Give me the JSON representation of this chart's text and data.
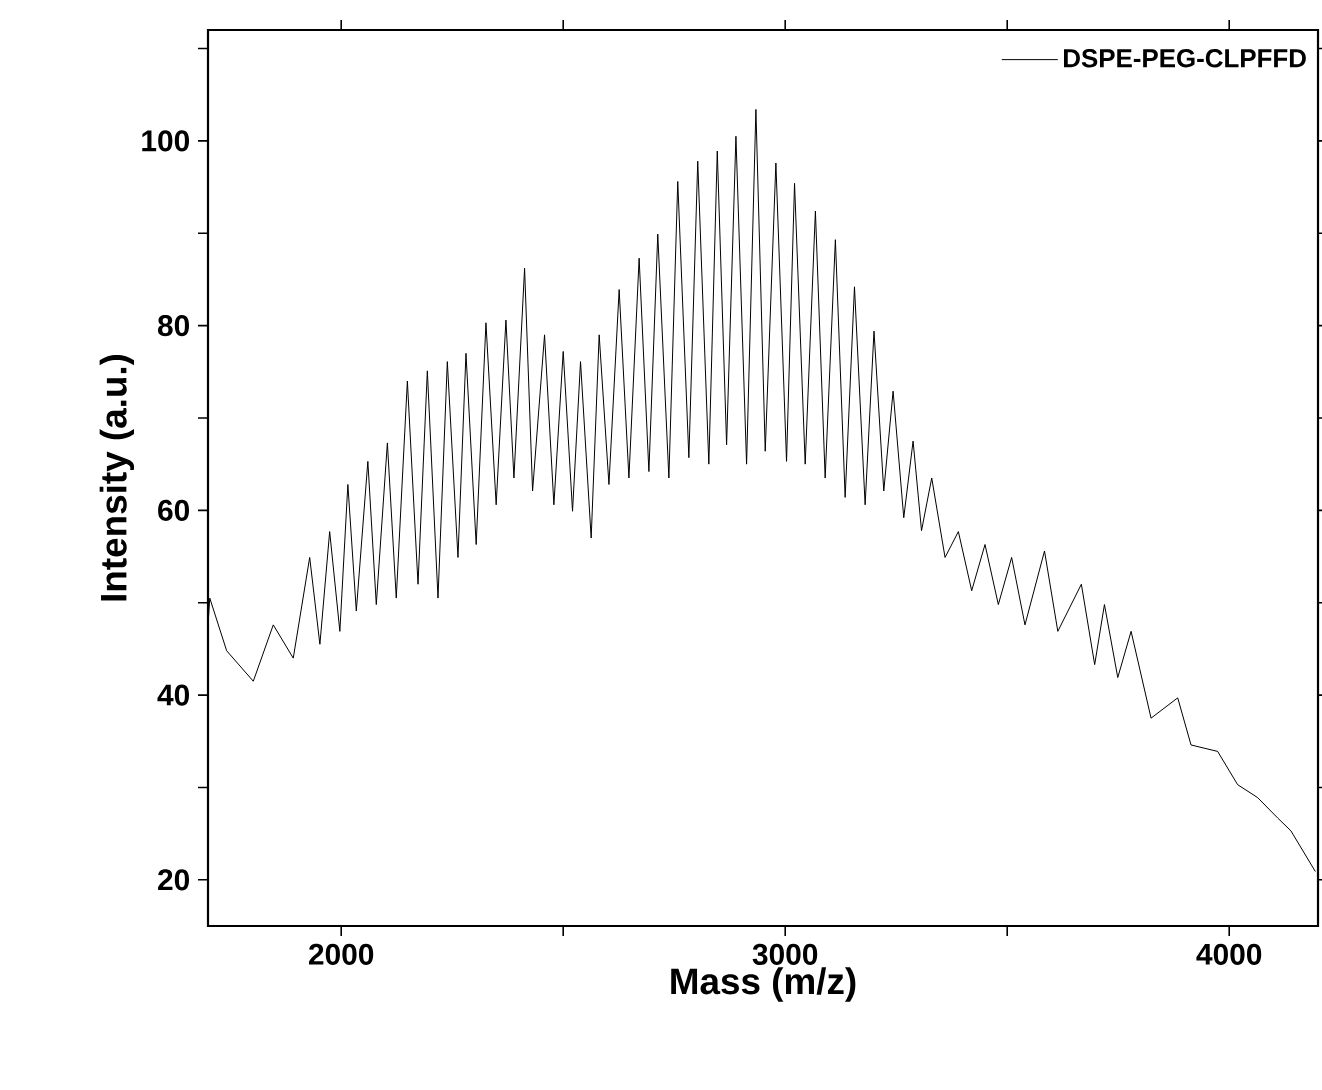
{
  "chart_data": {
    "type": "line",
    "xlabel": "Mass (m/z)",
    "ylabel": "Intensity (a.u.)",
    "xlim": [
      1700,
      4200
    ],
    "ylim": [
      15,
      112
    ],
    "xticks": [
      2000,
      {
        "value": 2500,
        "label": null
      },
      3000,
      {
        "value": 3500,
        "label": null
      },
      4000
    ],
    "yticks": [
      20,
      {
        "value": 30,
        "label": null
      },
      40,
      {
        "value": 50,
        "label": null
      },
      60,
      {
        "value": 70,
        "label": null
      },
      80,
      {
        "value": 90,
        "label": null
      },
      100,
      {
        "value": 110,
        "label": null
      }
    ],
    "legend": "top right",
    "marker": "none",
    "line_style": "solid",
    "series": [
      {
        "name": "DSPE-PEG-CLPFFD",
        "color": "#000000",
        "x": [
          1700,
          1704,
          1742,
          1802,
          1847,
          1892,
          1929,
          1952,
          1974,
          1997,
          2015,
          2034,
          2060,
          2079,
          2104,
          2124,
          2149,
          2173,
          2194,
          2218,
          2239,
          2263,
          2281,
          2304,
          2326,
          2349,
          2371,
          2389,
          2413,
          2431,
          2458,
          2479,
          2500,
          2521,
          2539,
          2563,
          2581,
          2603,
          2626,
          2648,
          2671,
          2693,
          2713,
          2738,
          2758,
          2783,
          2803,
          2828,
          2847,
          2868,
          2889,
          2913,
          2934,
          2955,
          2979,
          3003,
          3021,
          3045,
          3068,
          3090,
          3113,
          3135,
          3156,
          3180,
          3200,
          3222,
          3243,
          3267,
          3288,
          3307,
          3330,
          3360,
          3390,
          3420,
          3450,
          3480,
          3510,
          3540,
          3584,
          3614,
          3667,
          3697,
          3719,
          3749,
          3779,
          3824,
          3884,
          3914,
          3974,
          4019,
          4064,
          4109,
          4139,
          4194
        ],
        "values": [
          47.6,
          50.5,
          44.8,
          41.5,
          47.6,
          44.0,
          54.9,
          45.5,
          57.7,
          46.9,
          62.8,
          49.1,
          65.3,
          49.8,
          67.3,
          50.5,
          74.0,
          52.0,
          75.1,
          50.5,
          76.1,
          54.9,
          77.0,
          56.3,
          80.3,
          60.6,
          80.6,
          63.5,
          86.2,
          62.1,
          79.0,
          60.6,
          77.2,
          59.9,
          76.1,
          57.0,
          79.0,
          62.8,
          83.9,
          63.5,
          87.3,
          64.2,
          89.9,
          63.5,
          95.6,
          65.7,
          97.8,
          65.0,
          98.9,
          67.1,
          100.5,
          65.0,
          103.4,
          66.4,
          97.6,
          65.3,
          95.4,
          65.0,
          92.4,
          63.5,
          89.3,
          61.4,
          84.2,
          60.6,
          79.4,
          62.1,
          72.9,
          59.2,
          67.5,
          57.8,
          63.5,
          54.9,
          57.7,
          51.3,
          56.3,
          49.8,
          54.9,
          47.6,
          55.6,
          46.9,
          52.0,
          43.3,
          49.8,
          41.9,
          46.9,
          37.5,
          39.7,
          34.6,
          33.9,
          30.3,
          28.9,
          26.7,
          25.3,
          20.9
        ]
      }
    ]
  }
}
